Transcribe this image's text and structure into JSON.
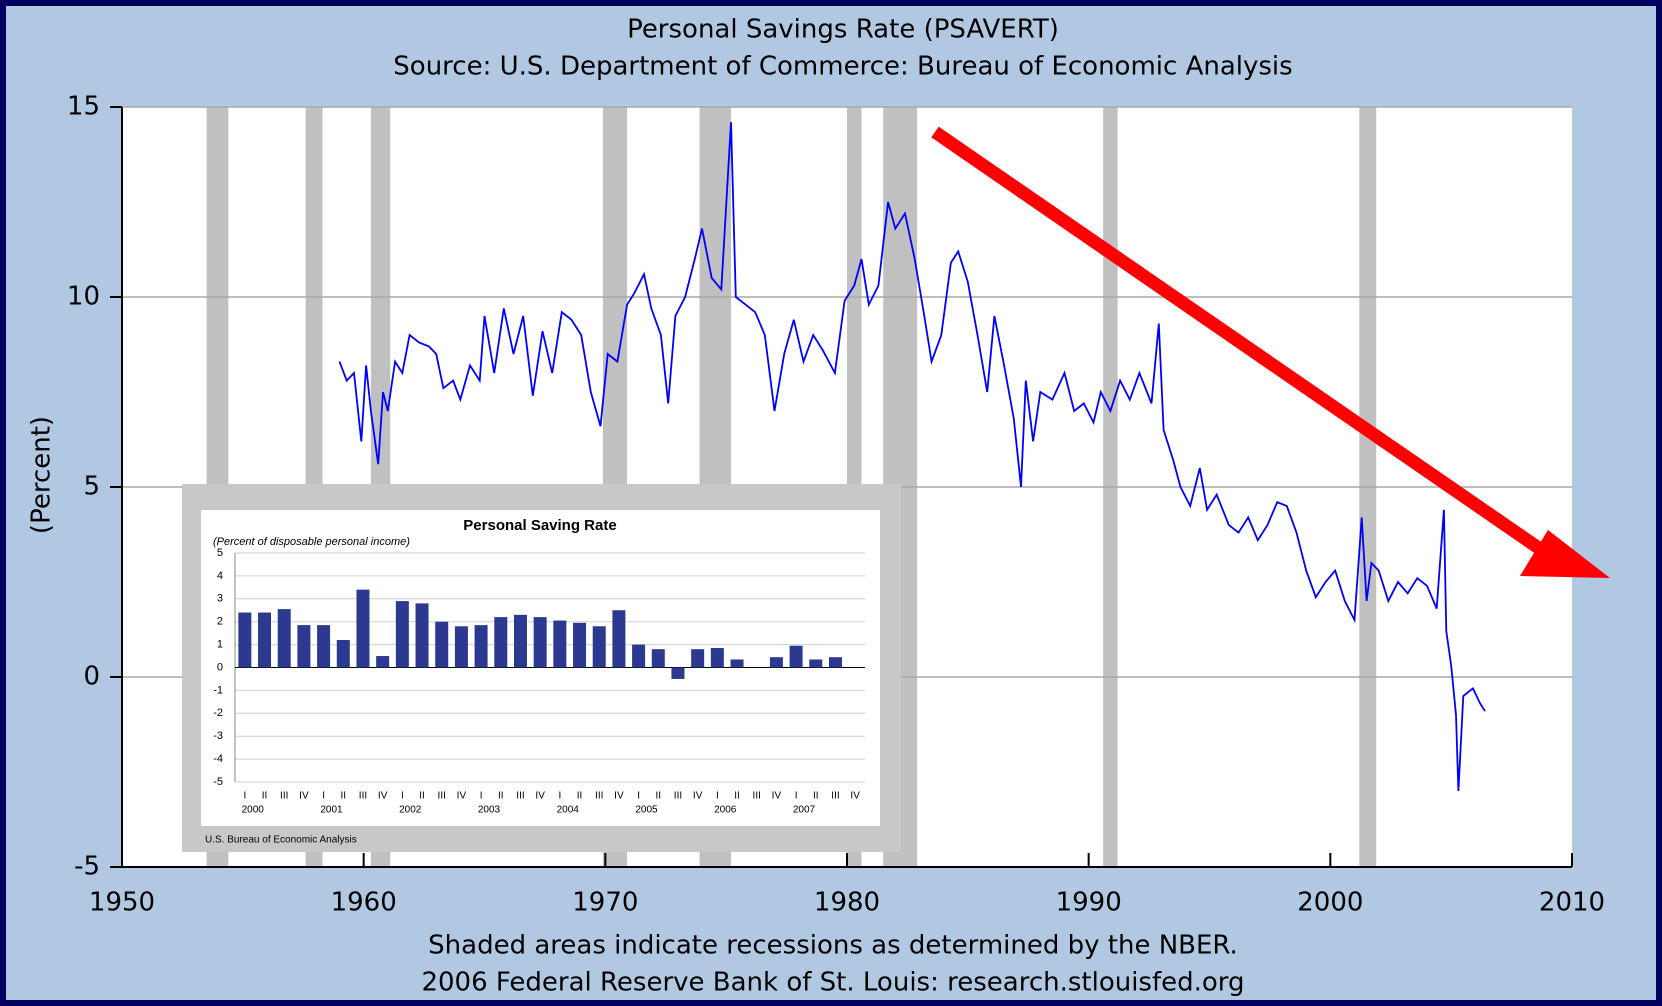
{
  "chart_data": [
    {
      "type": "line",
      "title": "Personal Savings Rate (PSAVERT)",
      "subtitle": "Source: U.S. Department of Commerce: Bureau of Economic Analysis",
      "y_label": "(Percent)",
      "notes": [
        "Shaded areas indicate recessions as determined by the NBER.",
        "2006 Federal Reserve Bank of St. Louis: research.stlouisfed.org"
      ],
      "xlim": [
        1950,
        2010
      ],
      "xticks": [
        1950,
        1960,
        1970,
        1980,
        1990,
        2000,
        2010
      ],
      "ylim": [
        -5,
        15
      ],
      "yticks": [
        -5,
        0,
        5,
        10,
        15
      ],
      "grid": true,
      "color": "#0000ff",
      "recession_color": "#c0c0c0",
      "recessions": [
        [
          1953.5,
          1954.4
        ],
        [
          1957.6,
          1958.3
        ],
        [
          1960.3,
          1961.1
        ],
        [
          1969.9,
          1970.9
        ],
        [
          1973.9,
          1975.2
        ],
        [
          1980.0,
          1980.6
        ],
        [
          1981.5,
          1982.9
        ],
        [
          1990.6,
          1991.2
        ],
        [
          2001.2,
          2001.9
        ]
      ],
      "x": [
        1959.0,
        1959.3,
        1959.6,
        1959.9,
        1960.1,
        1960.3,
        1960.6,
        1960.8,
        1961.0,
        1961.3,
        1961.6,
        1961.9,
        1962.3,
        1962.7,
        1963.0,
        1963.3,
        1963.7,
        1964.0,
        1964.4,
        1964.8,
        1965.0,
        1965.4,
        1965.8,
        1966.2,
        1966.6,
        1967.0,
        1967.4,
        1967.8,
        1968.2,
        1968.6,
        1969.0,
        1969.4,
        1969.8,
        1970.1,
        1970.5,
        1970.9,
        1971.2,
        1971.6,
        1971.9,
        1972.3,
        1972.6,
        1972.9,
        1973.3,
        1973.7,
        1974.0,
        1974.4,
        1974.8,
        1975.2,
        1975.4,
        1975.8,
        1976.2,
        1976.6,
        1977.0,
        1977.4,
        1977.8,
        1978.2,
        1978.6,
        1979.0,
        1979.5,
        1979.9,
        1980.3,
        1980.6,
        1980.9,
        1981.3,
        1981.7,
        1982.0,
        1982.4,
        1982.8,
        1983.2,
        1983.5,
        1983.9,
        1984.3,
        1984.6,
        1985.0,
        1985.4,
        1985.8,
        1986.1,
        1986.5,
        1986.9,
        1987.2,
        1987.4,
        1987.7,
        1988.0,
        1988.5,
        1989.0,
        1989.4,
        1989.8,
        1990.2,
        1990.5,
        1990.9,
        1991.3,
        1991.7,
        1992.1,
        1992.6,
        1992.9,
        1993.1,
        1993.5,
        1993.8,
        1994.2,
        1994.6,
        1994.9,
        1995.3,
        1995.8,
        1996.2,
        1996.6,
        1997.0,
        1997.4,
        1997.8,
        1998.2,
        1998.6,
        1999.0,
        1999.4,
        1999.8,
        2000.2,
        2000.6,
        2001.0,
        2001.3,
        2001.5,
        2001.7,
        2002.0,
        2002.4,
        2002.8,
        2003.2,
        2003.6,
        2004.0,
        2004.4,
        2004.7,
        2004.8,
        2005.0,
        2005.2,
        2005.3,
        2005.5,
        2005.9,
        2006.2,
        2006.4
      ],
      "values": [
        8.3,
        7.8,
        8.0,
        6.2,
        8.2,
        7.0,
        5.6,
        7.5,
        7.0,
        8.3,
        8.0,
        9.0,
        8.8,
        8.7,
        8.5,
        7.6,
        7.8,
        7.3,
        8.2,
        7.8,
        9.5,
        8.0,
        9.7,
        8.5,
        9.5,
        7.4,
        9.1,
        8.0,
        9.6,
        9.4,
        9.0,
        7.5,
        6.6,
        8.5,
        8.3,
        9.8,
        10.1,
        10.6,
        9.7,
        9.0,
        7.2,
        9.5,
        10.0,
        11.0,
        11.8,
        10.5,
        10.2,
        14.6,
        10.0,
        9.8,
        9.6,
        9.0,
        7.0,
        8.5,
        9.4,
        8.3,
        9.0,
        8.6,
        8.0,
        9.9,
        10.3,
        11.0,
        9.8,
        10.3,
        12.5,
        11.8,
        12.2,
        11.0,
        9.5,
        8.3,
        9.0,
        10.9,
        11.2,
        10.4,
        9.0,
        7.5,
        9.5,
        8.2,
        6.8,
        5.0,
        7.8,
        6.2,
        7.5,
        7.3,
        8.0,
        7.0,
        7.2,
        6.7,
        7.5,
        7.0,
        7.8,
        7.3,
        8.0,
        7.2,
        9.3,
        6.5,
        5.7,
        5.0,
        4.5,
        5.5,
        4.4,
        4.8,
        4.0,
        3.8,
        4.2,
        3.6,
        4.0,
        4.6,
        4.5,
        3.8,
        2.8,
        2.1,
        2.5,
        2.8,
        2.0,
        1.5,
        4.2,
        2.0,
        3.0,
        2.8,
        2.0,
        2.5,
        2.2,
        2.6,
        2.4,
        1.8,
        4.4,
        1.2,
        0.3,
        -1.0,
        -3.0,
        -0.5,
        -0.3,
        -0.7,
        -0.9
      ]
    },
    {
      "type": "bar",
      "title": "Personal Saving Rate",
      "subtitle": "(Percent of disposable personal income)",
      "source": "U.S. Bureau of Economic Analysis",
      "color": "#2b3990",
      "ylim": [
        -5,
        5
      ],
      "yticks": [
        -5,
        -4,
        -3,
        -2,
        -1,
        0,
        1,
        2,
        3,
        4,
        5
      ],
      "grid": true,
      "categories": [
        "I",
        "II",
        "III",
        "IV",
        "I",
        "II",
        "III",
        "IV",
        "I",
        "II",
        "III",
        "IV",
        "I",
        "II",
        "III",
        "IV",
        "I",
        "II",
        "III",
        "IV",
        "I",
        "II",
        "III",
        "IV",
        "I",
        "II",
        "III",
        "IV",
        "I",
        "II",
        "III",
        "IV"
      ],
      "year_labels": [
        "2000",
        "2001",
        "2002",
        "2003",
        "2004",
        "2005",
        "2006",
        "2007"
      ],
      "values": [
        2.4,
        2.4,
        2.55,
        1.85,
        1.85,
        1.2,
        3.4,
        0.5,
        2.9,
        2.8,
        2.0,
        1.8,
        1.85,
        2.2,
        2.3,
        2.2,
        2.05,
        1.95,
        1.8,
        2.5,
        1.0,
        0.8,
        -0.5,
        0.8,
        0.85,
        0.35,
        0,
        0.45,
        0.95,
        0.35,
        0.45,
        null
      ]
    }
  ]
}
